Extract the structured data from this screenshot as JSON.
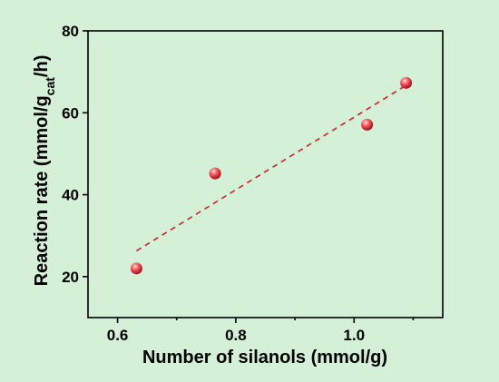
{
  "chart_data": {
    "type": "scatter",
    "xlabel": "Number of silanols (mmol/g)",
    "ylabel": {
      "prefix": "Reaction rate (mmol/g",
      "subscript": "cat",
      "suffix": "/h)"
    },
    "xlim": [
      0.55,
      1.15
    ],
    "ylim": [
      10,
      80
    ],
    "xticks": [
      "0.6",
      "0.8",
      "1.0"
    ],
    "yticks": [
      "20",
      "40",
      "60",
      "80"
    ],
    "grid": false,
    "series": [
      {
        "marker_color": "#e8434a",
        "points": [
          {
            "x": 0.632,
            "y": 22.0
          },
          {
            "x": 0.765,
            "y": 45.2
          },
          {
            "x": 1.022,
            "y": 57.1
          },
          {
            "x": 1.088,
            "y": 67.3
          }
        ]
      }
    ],
    "fit_line": {
      "style": "dashed",
      "color": "#d0212a",
      "start": {
        "x": 0.632,
        "y": 26.3
      },
      "end": {
        "x": 1.088,
        "y": 66.7
      }
    }
  }
}
